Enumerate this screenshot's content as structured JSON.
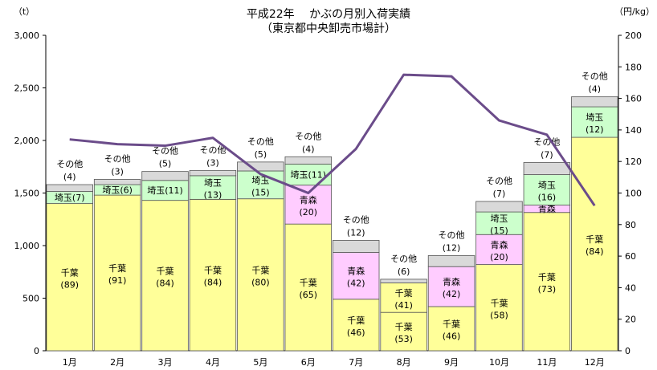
{
  "chart_data": {
    "type": "bar",
    "title": "平成22年　 かぶの月別入荷実績",
    "subtitle": "（東京都中央卸売市場計）",
    "ylabel_left": "（t）",
    "ylabel_right": "（円/kg）",
    "categories": [
      "1月",
      "2月",
      "3月",
      "4月",
      "5月",
      "6月",
      "7月",
      "8月",
      "9月",
      "10月",
      "11月",
      "12月"
    ],
    "ylim_left": [
      0,
      3000
    ],
    "yticks_left": [
      "0",
      "500",
      "1,000",
      "1,500",
      "2,000",
      "2,500",
      "3,000"
    ],
    "ylim_right": [
      0,
      200
    ],
    "yticks_right": [
      "0",
      "20",
      "40",
      "60",
      "80",
      "100",
      "120",
      "140",
      "160",
      "180",
      "200"
    ],
    "series": [
      {
        "name": "千葉",
        "color": "#ffff99",
        "values": [
          1400,
          1480,
          1430,
          1440,
          1445,
          1205,
          490,
          365,
          420,
          820,
          1315,
          2030
        ],
        "pct": [
          "(89)",
          "(91)",
          "(84)",
          "(84)",
          "(80)",
          "(65)",
          "(46)",
          "(53)",
          "(46)",
          "(58)",
          "(73)",
          "(84)"
        ]
      },
      {
        "name": "青森",
        "color": "#ffccff",
        "values": [
          0,
          0,
          0,
          0,
          0,
          370,
          445,
          0,
          380,
          285,
          70,
          0
        ],
        "pct": [
          "",
          "",
          "",
          "",
          "",
          "(20)",
          "(42)",
          "",
          "(42)",
          "(20)",
          "",
          ""
        ]
      },
      {
        "name": "千葉",
        "color": "#ffff99",
        "values": [
          0,
          0,
          0,
          0,
          0,
          0,
          0,
          280,
          0,
          0,
          0,
          0
        ],
        "pct": [
          "",
          "",
          "",
          "",
          "",
          "",
          "",
          "(41)",
          "",
          "",
          "",
          ""
        ]
      },
      {
        "name": "青森",
        "color": "#ffccff",
        "values": [
          0,
          0,
          0,
          0,
          0,
          0,
          0,
          0,
          0,
          0,
          0,
          0
        ],
        "pct": [
          "",
          "",
          "",
          "",
          "",
          "",
          "",
          "",
          "",
          "",
          "",
          ""
        ]
      },
      {
        "name": "埼玉",
        "color": "#ccffcc",
        "values": [
          115,
          100,
          190,
          225,
          265,
          200,
          0,
          0,
          0,
          215,
          290,
          290
        ],
        "pct": [
          "(7)",
          "(6)",
          "(11)",
          "(13)",
          "(15)",
          "(11)",
          "",
          "",
          "",
          "(15)",
          "(16)",
          "(12)"
        ]
      },
      {
        "name": "その他",
        "color": "#d9d9d9",
        "values": [
          65,
          50,
          85,
          50,
          85,
          70,
          115,
          35,
          105,
          100,
          115,
          95
        ],
        "pct": [
          "(4)",
          "(3)",
          "(5)",
          "(3)",
          "(5)",
          "(4)",
          "(12)",
          "(6)",
          "(12)",
          "(7)",
          "(7)",
          "(4)"
        ]
      }
    ],
    "price_line": {
      "color": "#6b4c8a",
      "values": [
        134,
        131,
        130,
        135,
        112,
        100,
        128,
        175,
        174,
        146,
        137,
        92
      ]
    }
  }
}
